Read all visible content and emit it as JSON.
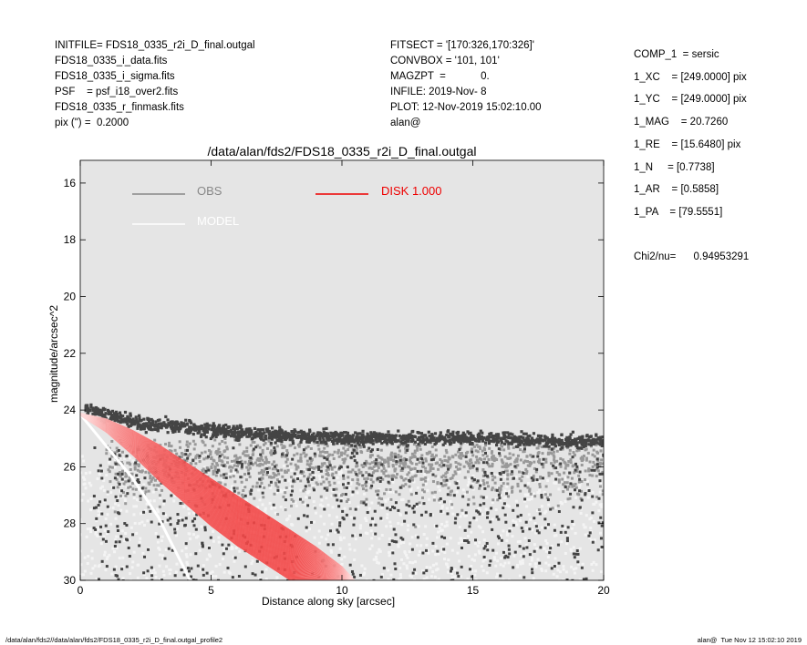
{
  "header_left": [
    "INITFILE= FDS18_0335_r2i_D_final.outgal",
    "FDS18_0335_i_data.fits",
    "FDS18_0335_i_sigma.fits",
    "PSF    = psf_i18_over2.fits",
    "FDS18_0335_r_finmask.fits",
    "pix (\") =  0.2000"
  ],
  "header_mid": [
    "FITSECT = '[170:326,170:326]'",
    "CONVBOX = '101, 101'",
    "MAGZPT  =            0.",
    "INFILE: 2019-Nov- 8",
    "PLOT: 12-Nov-2019 15:02:10.00",
    "alan@"
  ],
  "header_right": [
    "COMP_1  = sersic",
    "1_XC    = [249.0000] pix",
    "1_YC    = [249.0000] pix",
    "1_MAG    = 20.7260",
    "1_RE    = [15.6480] pix",
    "1_N     = [0.7738]",
    "1_AR    = [0.5858]",
    "1_PA    = [79.5551]"
  ],
  "chi2": "Chi2/nu=      0.94953291",
  "footer_left": "/data/alan/fds2//data/alan/fds2/FDS18_0335_r2i_D_final.outgal_profile2",
  "footer_right": "alan@  Tue Nov 12 15:02:10 2019",
  "colors": {
    "plot_bg": "#e5e5e5",
    "obs": "#888888",
    "model": "#ffffff",
    "disk": "#ee0000",
    "scatter_dark": "#444444",
    "scatter_mid": "#999999",
    "scatter_light": "#f4f4f4"
  },
  "chart_data": {
    "type": "scatter",
    "title": "/data/alan/fds2/FDS18_0335_r2i_D_final.outgal",
    "xlabel": "Distance along sky [arcsec]",
    "ylabel": "magnitude/arcsec^2",
    "xlim": [
      0,
      20
    ],
    "ylim": [
      30,
      15.2
    ],
    "y_inverted": true,
    "xticks": [
      0,
      5,
      10,
      15,
      20
    ],
    "yticks": [
      16,
      18,
      20,
      22,
      24,
      26,
      28,
      30
    ],
    "grid": false,
    "legend": [
      {
        "name": "OBS",
        "color": "#888888"
      },
      {
        "name": "DISK  1.000",
        "color": "#ee0000"
      },
      {
        "name": "MODEL",
        "color": "#ffffff"
      }
    ],
    "series": [
      {
        "name": "OBS",
        "description": "dark band of points",
        "x": [
          0.3,
          0.8,
          1.5,
          2.5,
          4,
          6,
          8,
          10,
          12,
          14,
          16,
          18,
          20
        ],
        "y": [
          24.0,
          24.1,
          24.3,
          24.5,
          24.6,
          24.8,
          24.9,
          25.0,
          25.0,
          25.0,
          25.0,
          25.1,
          25.1
        ]
      },
      {
        "name": "DISK  1.000",
        "x": [
          0,
          1,
          2,
          3,
          4,
          5,
          6,
          7,
          8,
          9,
          10,
          10.5
        ],
        "y_upper": [
          24.1,
          24.3,
          24.7,
          25.2,
          25.8,
          26.4,
          27.0,
          27.6,
          28.2,
          28.8,
          29.5,
          30.0
        ],
        "y_lower": [
          24.2,
          24.8,
          25.6,
          26.5,
          27.3,
          28.1,
          28.8,
          29.4,
          30.0,
          30.0,
          30.0,
          30.0
        ]
      }
    ]
  }
}
